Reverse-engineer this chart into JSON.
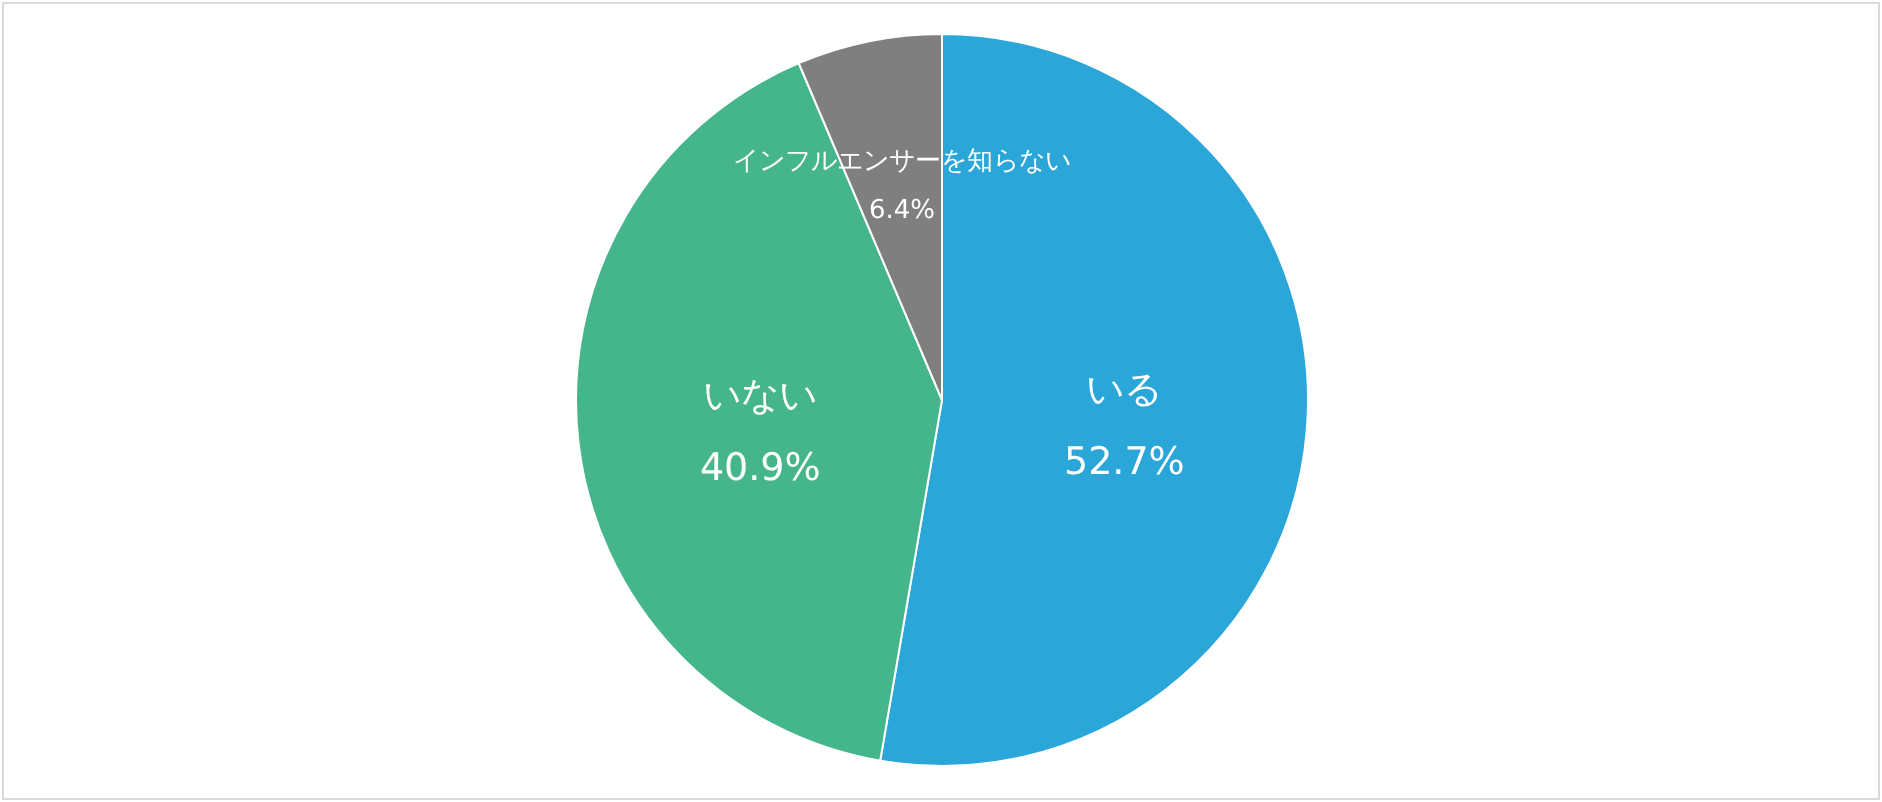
{
  "chart_data": {
    "type": "pie",
    "categories": [
      "いる",
      "いない",
      "インフルエンサーを知らない"
    ],
    "values": [
      52.7,
      40.9,
      6.4
    ],
    "colors": [
      "#2ba6d9",
      "#45b68b",
      "#7f7f7f"
    ],
    "value_labels": [
      "52.7%",
      "40.9%",
      "6.4%"
    ]
  }
}
